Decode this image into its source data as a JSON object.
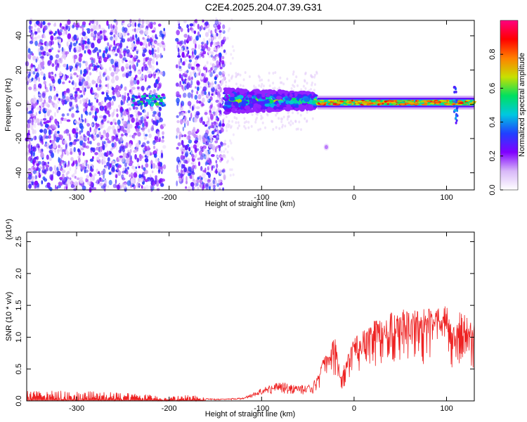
{
  "title": "C2E4.2025.204.07.39.G31",
  "chart_data": [
    {
      "type": "heatmap",
      "xlabel": "Height of straight line (km)",
      "ylabel": "Frequency (Hz)",
      "xlim": [
        -354,
        130
      ],
      "ylim": [
        -50,
        49
      ],
      "xticks": [
        -300,
        -200,
        -100,
        0,
        100
      ],
      "xtick_labels": [
        "-300",
        "-200",
        "-100",
        "0",
        "100"
      ],
      "yticks": [
        40,
        20,
        0,
        -20,
        -40
      ],
      "ytick_labels": [
        "40",
        "20",
        "0",
        "-20",
        "-40"
      ],
      "colorbar": {
        "label": "Normalized spectral amplitude",
        "range": [
          0,
          1
        ],
        "ticks": [
          0.0,
          0.2,
          0.4,
          0.6,
          0.8
        ],
        "tick_labels": [
          "0.0",
          "0.2",
          "0.4",
          "0.6",
          "0.8"
        ],
        "colors": [
          "#ffffff",
          "#d8b8f8",
          "#8000ff",
          "#2040ff",
          "#00c8e0",
          "#00e060",
          "#c8e000",
          "#ff8000",
          "#ff0000",
          "#ff0080"
        ]
      },
      "regions": [
        {
          "name": "noise",
          "x": [
            -354,
            -140
          ],
          "freq": [
            -50,
            49
          ],
          "level": 0.15
        },
        {
          "name": "gap",
          "x": [
            -205,
            -192
          ],
          "level": 0.0
        },
        {
          "name": "broad-band",
          "x": [
            -140,
            -40
          ],
          "freq_center": 2,
          "halfwidth": 7,
          "level": 0.5
        },
        {
          "name": "narrow-line",
          "x": [
            -40,
            130
          ],
          "freq_center": 1,
          "halfwidth": 2,
          "level": 0.85
        },
        {
          "name": "isolated-dot",
          "x": -30,
          "freq": -25,
          "level": 0.2
        }
      ]
    },
    {
      "type": "line",
      "xlabel": "Height of straight line (km)",
      "ylabel": "SNR (10 * v/v)",
      "scale_label": "(x10⁴)",
      "xlim": [
        -354,
        130
      ],
      "ylim": [
        0,
        2.65
      ],
      "xticks": [
        -300,
        -200,
        -100,
        0,
        100
      ],
      "xtick_labels": [
        "-300",
        "-200",
        "-100",
        "0",
        "100"
      ],
      "yticks": [
        0.0,
        0.5,
        1.0,
        1.5,
        2.0,
        2.5
      ],
      "ytick_labels": [
        "0.0",
        "0.5",
        "1.0",
        "1.5",
        "2.0",
        "2.5"
      ],
      "color": "#ee2222",
      "series": [
        {
          "x": [
            -354,
            -300,
            -250,
            -220,
            -200,
            -180,
            -150,
            -120,
            -100,
            -80,
            -60,
            -45,
            -30,
            -20,
            -15,
            -5,
            0,
            10,
            20,
            30,
            40,
            60,
            80,
            90,
            100,
            105,
            110,
            115,
            130
          ],
          "y": [
            0.1,
            0.1,
            0.08,
            0.06,
            0.04,
            0.06,
            0.03,
            0.05,
            0.2,
            0.3,
            0.25,
            0.25,
            0.8,
            1.0,
            0.4,
            0.8,
            1.0,
            1.1,
            1.25,
            1.3,
            1.4,
            1.45,
            1.45,
            1.45,
            1.5,
            1.3,
            1.1,
            1.45,
            1.25
          ]
        }
      ]
    }
  ]
}
